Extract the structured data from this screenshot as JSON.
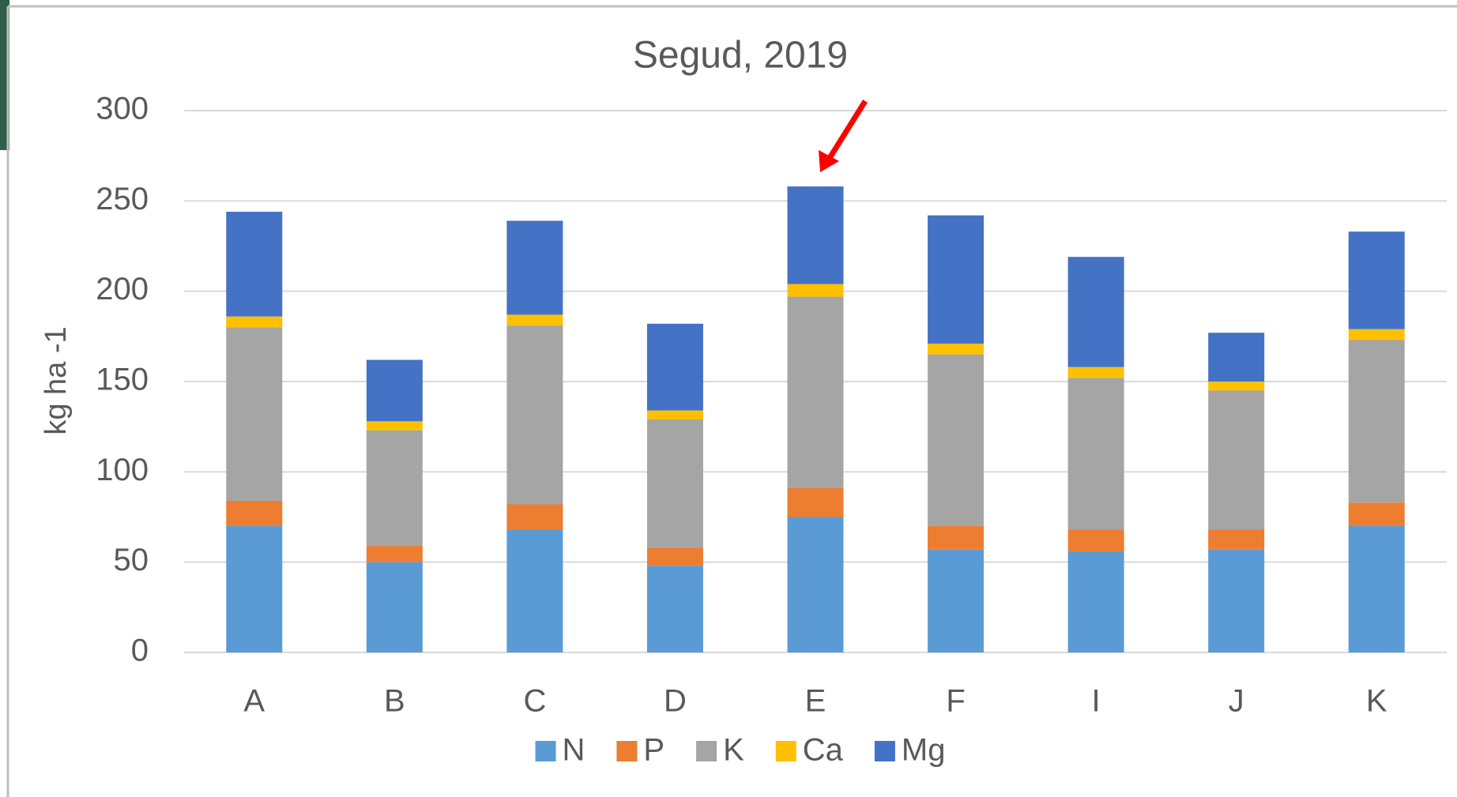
{
  "chart_data": {
    "type": "stacked_bar",
    "title": "Segud, 2019",
    "y_label": "kg ha -1",
    "categories": [
      "A",
      "B",
      "C",
      "D",
      "E",
      "F",
      "I",
      "J",
      "K"
    ],
    "series": [
      {
        "name": "N",
        "color": "#5b9bd5",
        "values": [
          70,
          50,
          68,
          48,
          75,
          57,
          56,
          57,
          70
        ]
      },
      {
        "name": "P",
        "color": "#ed7d31",
        "values": [
          14,
          9,
          14,
          10,
          16,
          13,
          12,
          11,
          13
        ]
      },
      {
        "name": "K",
        "color": "#a5a5a5",
        "values": [
          96,
          64,
          99,
          71,
          106,
          95,
          84,
          77,
          90
        ]
      },
      {
        "name": "Ca",
        "color": "#ffc000",
        "values": [
          6,
          5,
          6,
          5,
          7,
          6,
          6,
          5,
          6
        ]
      },
      {
        "name": "Mg",
        "color": "#4472c4",
        "values": [
          58,
          34,
          52,
          48,
          54,
          71,
          61,
          27,
          54
        ]
      }
    ],
    "ylim": [
      0,
      300
    ],
    "yticks": [
      0,
      50,
      100,
      150,
      200,
      250,
      300
    ],
    "grid": true,
    "legend": "bottom"
  }
}
